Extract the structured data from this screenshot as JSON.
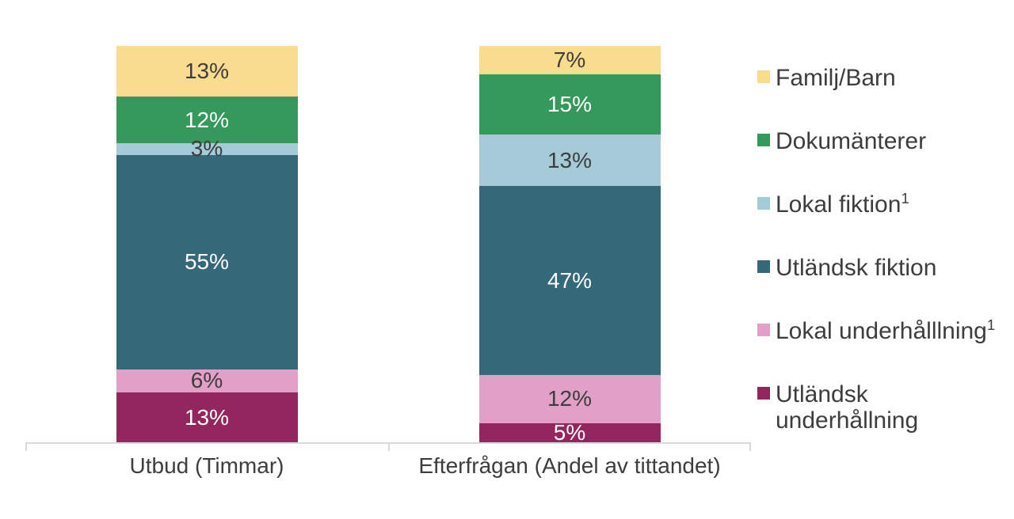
{
  "chart_data": {
    "type": "bar",
    "subtype": "stacked-percent",
    "title": "",
    "categories": [
      "Utbud (Timmar)",
      "Efterfrågan (Andel av tittandet)"
    ],
    "series": [
      {
        "name": "Familj/Barn",
        "superscript": "",
        "wrap": false,
        "color": "#FADC8E",
        "label_color": "#3d3d3d",
        "values": [
          13,
          7
        ]
      },
      {
        "name": "Dokumänterer",
        "superscript": "",
        "wrap": false,
        "color": "#34995B",
        "label_color": "#ffffff",
        "values": [
          12,
          15
        ]
      },
      {
        "name": "Lokal fiktion",
        "superscript": "1",
        "wrap": false,
        "color": "#A5CBD9",
        "label_color": "#3d3d3d",
        "values": [
          3,
          13
        ]
      },
      {
        "name": "Utländsk fiktion",
        "superscript": "",
        "wrap": false,
        "color": "#35697A",
        "label_color": "#ffffff",
        "values": [
          55,
          47
        ]
      },
      {
        "name": "Lokal underhålllning",
        "superscript": "1",
        "wrap": false,
        "color": "#E29FC7",
        "label_color": "#3d3d3d",
        "values": [
          6,
          12
        ]
      },
      {
        "name": "Utländsk underhållning",
        "superscript": "",
        "wrap": true,
        "color": "#92265E",
        "label_color": "#ffffff",
        "values": [
          13,
          5
        ]
      }
    ],
    "value_suffix": "%",
    "value_labels_shown": true,
    "legend_position": "right",
    "grid": false,
    "axis_color": "#d9d9d9",
    "text_color": "#3d3d3d",
    "background_color": "#ffffff"
  }
}
